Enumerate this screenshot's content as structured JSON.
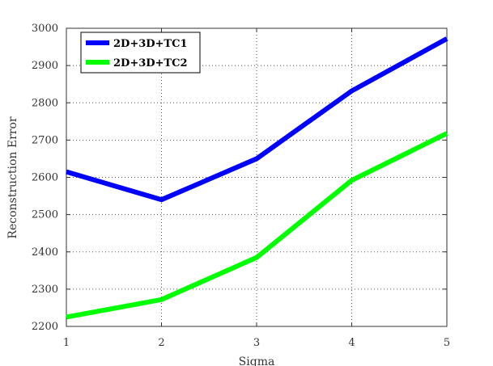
{
  "chart_data": {
    "type": "line",
    "title": "",
    "xlabel": "Sigma",
    "ylabel": "Reconstruction Error",
    "x": [
      1,
      2,
      3,
      4,
      5
    ],
    "xlim": [
      1,
      5
    ],
    "ylim": [
      2200,
      3000
    ],
    "x_ticks": [
      "1",
      "2",
      "3",
      "4",
      "5"
    ],
    "y_ticks": [
      "2200",
      "2300",
      "2400",
      "2500",
      "2600",
      "2700",
      "2800",
      "2900",
      "3000"
    ],
    "grid": true,
    "legend_position": "top-left",
    "series": [
      {
        "name": "2D+3D+TC1",
        "color": "#0000ff",
        "values": [
          2615,
          2540,
          2650,
          2832,
          2972
        ]
      },
      {
        "name": "2D+3D+TC2",
        "color": "#00ff00",
        "values": [
          2225,
          2272,
          2385,
          2592,
          2718
        ]
      }
    ]
  }
}
